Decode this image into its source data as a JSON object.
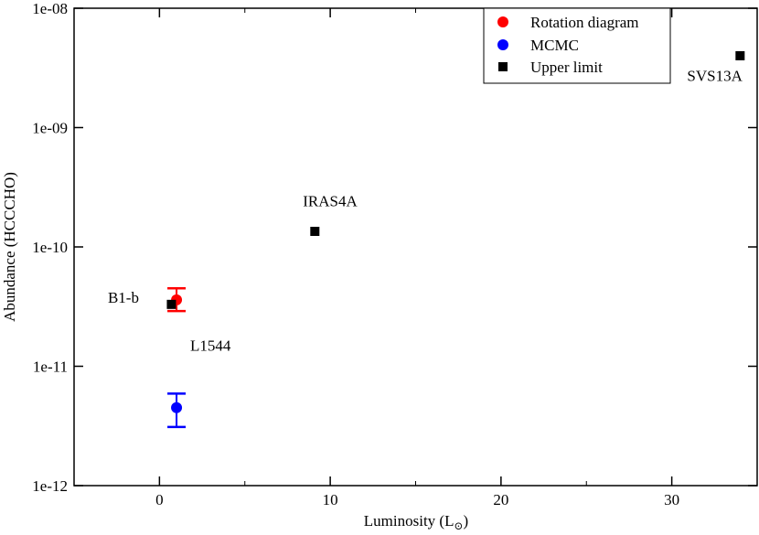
{
  "chart_data": {
    "type": "scatter",
    "xlabel": "Luminosity (L",
    "xlabel_sub": "⊙",
    "xlabel_close": ")",
    "ylabel": "Abundance (HCCCHO)",
    "xlim": [
      -5,
      35
    ],
    "ylim_log10": [
      -12,
      -8
    ],
    "y_scale": "log",
    "x_ticks": [
      {
        "value": 0,
        "label": "0"
      },
      {
        "value": 10,
        "label": "10"
      },
      {
        "value": 20,
        "label": "20"
      },
      {
        "value": 30,
        "label": "30"
      }
    ],
    "y_ticks": [
      {
        "exp": -12,
        "label": "1e-12"
      },
      {
        "exp": -11,
        "label": "1e-11"
      },
      {
        "exp": -10,
        "label": "1e-10"
      },
      {
        "exp": -9,
        "label": "1e-09"
      },
      {
        "exp": -8,
        "label": "1e-08"
      }
    ],
    "series": [
      {
        "name": "Rotation diagram",
        "marker": "circle",
        "color": "#ff0000",
        "points": [
          {
            "x": 1.0,
            "y": 3.6e-11,
            "yerr_low": 2.9e-11,
            "yerr_high": 4.5e-11
          }
        ]
      },
      {
        "name": "MCMC",
        "marker": "circle",
        "color": "#0000ff",
        "points": [
          {
            "x": 1.0,
            "y": 4.5e-12,
            "yerr_low": 3.1e-12,
            "yerr_high": 5.9e-12
          }
        ]
      },
      {
        "name": "Upper limit",
        "marker": "square",
        "color": "#000000",
        "points": [
          {
            "x": 0.7,
            "y": 3.3e-11
          },
          {
            "x": 9.1,
            "y": 1.35e-10
          },
          {
            "x": 34.0,
            "y": 4e-09
          }
        ]
      }
    ],
    "annotations": [
      {
        "text": "B1-b",
        "x": -1.2,
        "y": 3.4e-11,
        "anchor": "end"
      },
      {
        "text": "L1544",
        "x": 1.8,
        "y": 1.35e-11,
        "anchor": "start"
      },
      {
        "text": "IRAS4A",
        "x": 8.4,
        "y": 2.2e-10,
        "anchor": "start"
      },
      {
        "text": "SVS13A",
        "x": 30.9,
        "y": 2.45e-09,
        "anchor": "start"
      }
    ],
    "legend_position": "top-right"
  }
}
